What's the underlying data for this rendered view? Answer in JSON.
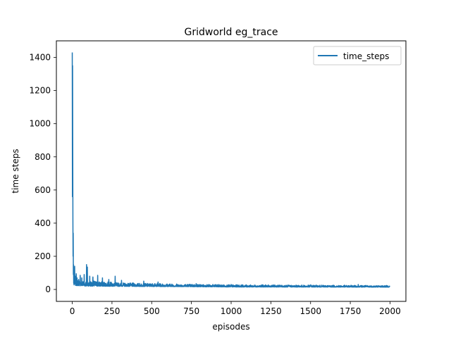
{
  "chart_data": {
    "type": "line",
    "title": "Gridworld eg_trace",
    "xlabel": "episodes",
    "ylabel": "time steps",
    "xlim": [
      -100,
      2100
    ],
    "ylim": [
      -72,
      1500
    ],
    "xticks": [
      0,
      250,
      500,
      750,
      1000,
      1250,
      1500,
      1750,
      2000
    ],
    "yticks": [
      0,
      200,
      400,
      600,
      800,
      1000,
      1200,
      1400
    ],
    "grid": false,
    "legend_position": "top-right",
    "series": [
      {
        "name": "time_steps",
        "color": "#1f77b4",
        "n_episodes": 2000,
        "spikes": [
          {
            "x": 0,
            "y": 1430
          },
          {
            "x": 1,
            "y": 560
          },
          {
            "x": 2,
            "y": 1350
          },
          {
            "x": 3,
            "y": 900
          },
          {
            "x": 4,
            "y": 420
          },
          {
            "x": 5,
            "y": 200
          },
          {
            "x": 6,
            "y": 340
          },
          {
            "x": 7,
            "y": 90
          },
          {
            "x": 8,
            "y": 150
          },
          {
            "x": 10,
            "y": 60
          },
          {
            "x": 12,
            "y": 130
          },
          {
            "x": 15,
            "y": 140
          },
          {
            "x": 20,
            "y": 80
          },
          {
            "x": 25,
            "y": 95
          },
          {
            "x": 30,
            "y": 70
          },
          {
            "x": 40,
            "y": 60
          },
          {
            "x": 50,
            "y": 85
          },
          {
            "x": 60,
            "y": 70
          },
          {
            "x": 75,
            "y": 90
          },
          {
            "x": 90,
            "y": 150
          },
          {
            "x": 95,
            "y": 135
          },
          {
            "x": 110,
            "y": 80
          },
          {
            "x": 130,
            "y": 75
          },
          {
            "x": 160,
            "y": 85
          },
          {
            "x": 190,
            "y": 70
          },
          {
            "x": 230,
            "y": 60
          },
          {
            "x": 270,
            "y": 80
          },
          {
            "x": 310,
            "y": 55
          },
          {
            "x": 450,
            "y": 50
          },
          {
            "x": 540,
            "y": 45
          },
          {
            "x": 780,
            "y": 35
          },
          {
            "x": 1000,
            "y": 30
          },
          {
            "x": 1200,
            "y": 28
          },
          {
            "x": 1500,
            "y": 28
          },
          {
            "x": 1800,
            "y": 30
          }
        ],
        "noise_floor": [
          {
            "x": 0,
            "y": 25
          },
          {
            "x": 100,
            "y": 20
          },
          {
            "x": 500,
            "y": 18
          },
          {
            "x": 1000,
            "y": 15
          },
          {
            "x": 2000,
            "y": 14
          }
        ],
        "noise_ceiling": [
          {
            "x": 0,
            "y": 60
          },
          {
            "x": 100,
            "y": 55
          },
          {
            "x": 300,
            "y": 40
          },
          {
            "x": 700,
            "y": 33
          },
          {
            "x": 1000,
            "y": 28
          },
          {
            "x": 2000,
            "y": 24
          }
        ],
        "final_value": 15
      }
    ]
  }
}
